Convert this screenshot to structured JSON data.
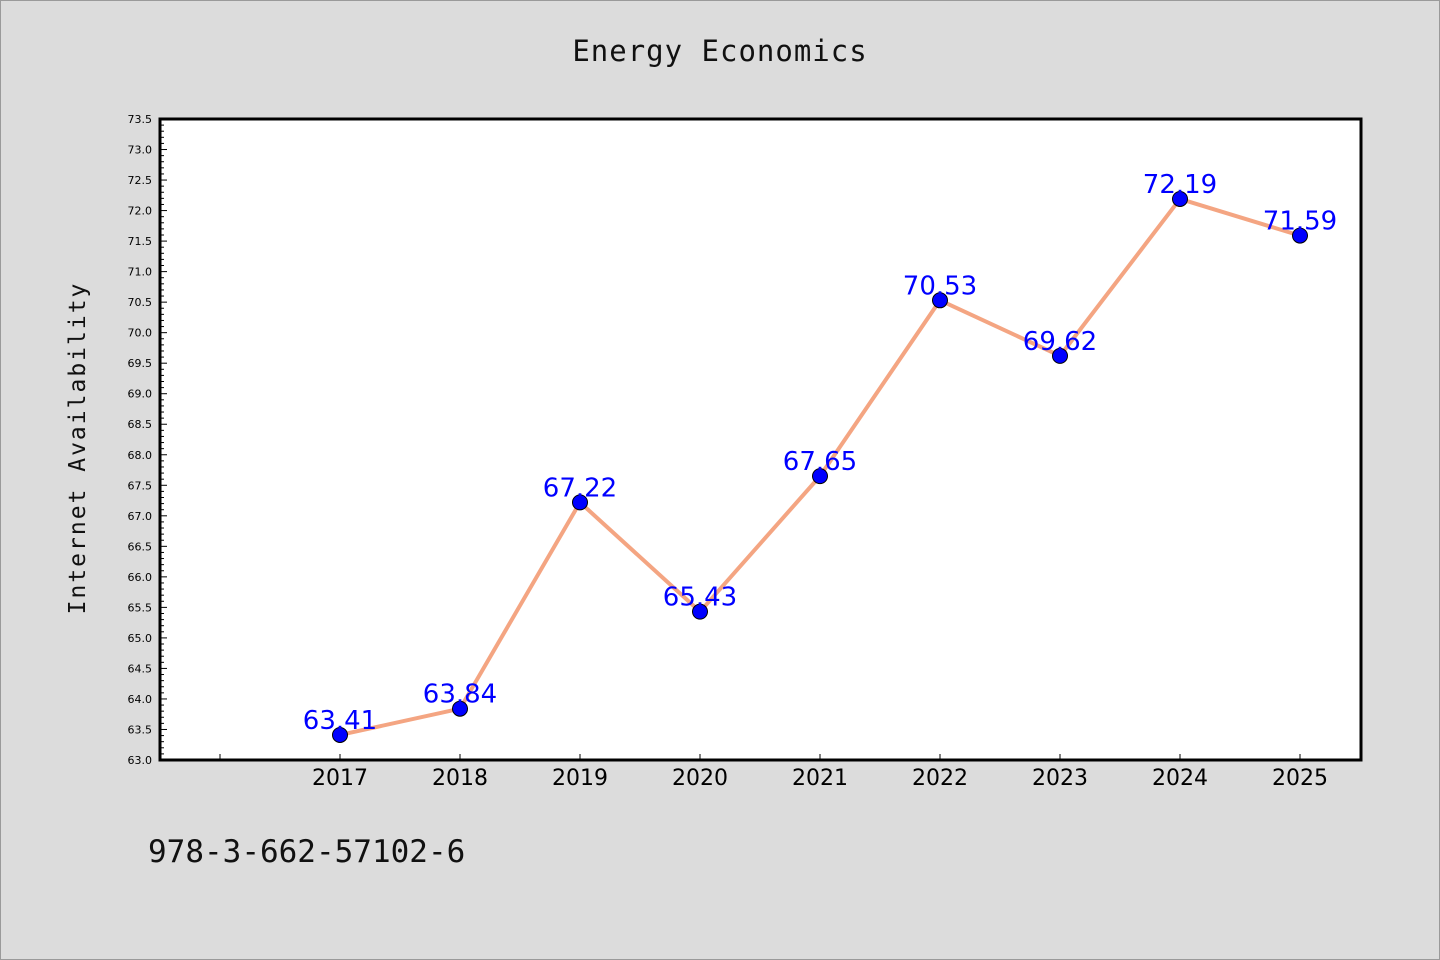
{
  "page": {
    "title": "Energy Economics",
    "isbn": "978-3-662-57102-6"
  },
  "chart_data": {
    "type": "line",
    "title": "Energy Economics",
    "xlabel": "",
    "ylabel": "Internet Availability",
    "categories": [
      "2017",
      "2018",
      "2019",
      "2020",
      "2021",
      "2022",
      "2023",
      "2024",
      "2025"
    ],
    "values": [
      63.41,
      63.84,
      67.22,
      65.43,
      67.65,
      70.53,
      69.62,
      72.19,
      71.59
    ],
    "data_labels": [
      "63.41",
      "63.84",
      "67.22",
      "65.43",
      "67.65",
      "70.53",
      "69.62",
      "72.19",
      "71.59"
    ],
    "ylim": [
      63.0,
      73.5
    ],
    "yticks": [
      "63.0",
      "63.5",
      "64.0",
      "64.5",
      "65.0",
      "65.5",
      "66.0",
      "66.5",
      "67.0",
      "67.5",
      "68.0",
      "68.5",
      "69.0",
      "69.5",
      "70.0",
      "70.5",
      "71.0",
      "71.5",
      "72.0",
      "72.5",
      "73.0",
      "73.5"
    ],
    "grid": false,
    "line_color": "#f4a582",
    "marker_color": "#0000ff",
    "label_color": "#0000ff"
  }
}
